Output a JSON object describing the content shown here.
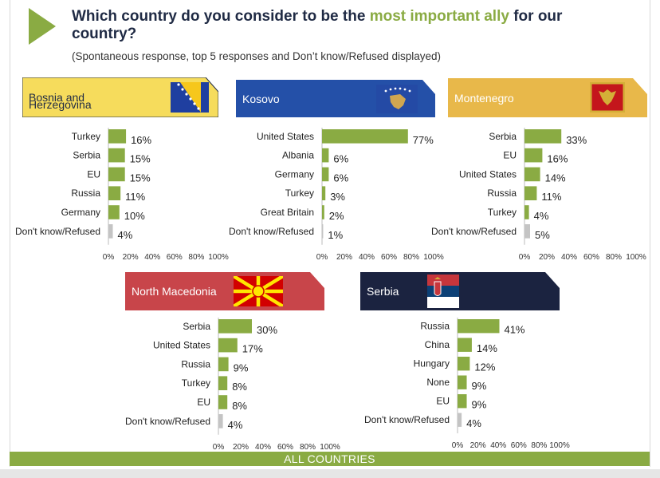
{
  "header": {
    "question_part1": "Which country do you consider to be the ",
    "question_highlight": "most important ally",
    "question_part2": " for our country?",
    "subtitle": "(Spontaneous response, top 5 responses and Don’t know/Refused displayed)"
  },
  "footer": {
    "label": "ALL COUNTRIES"
  },
  "colors": {
    "bar": "#8aab43",
    "bar_dk": "#c4c4c4",
    "accent": "#8aab43",
    "title": "#1f2a44"
  },
  "chart_data": [
    {
      "type": "bar",
      "orientation": "horizontal",
      "title": "Bosnia and Herzegovina",
      "title_lines": [
        "Bosnia and",
        "Herzegovina"
      ],
      "banner_color": "#f6dc5c",
      "banner_text_color": "#1f2a44",
      "flag": "bosnia-flag",
      "categories": [
        "Turkey",
        "Serbia",
        "EU",
        "Russia",
        "Germany",
        "Don't know/Refused"
      ],
      "values": [
        16,
        15,
        15,
        11,
        10,
        4
      ],
      "labels": [
        "16%",
        "15%",
        "15%",
        "11%",
        "10%",
        "4%"
      ],
      "xlim": [
        0,
        100
      ],
      "xticks": [
        "0%",
        "20%",
        "40%",
        "60%",
        "80%",
        "100%"
      ]
    },
    {
      "type": "bar",
      "orientation": "horizontal",
      "title": "Kosovo",
      "title_lines": [
        "Kosovo"
      ],
      "banner_color": "#2450a8",
      "banner_text_color": "#ffffff",
      "flag": "kosovo-flag",
      "categories": [
        "United States",
        "Albania",
        "Germany",
        "Turkey",
        "Great Britain",
        "Don't know/Refused"
      ],
      "values": [
        77,
        6,
        6,
        3,
        2,
        1
      ],
      "labels": [
        "77%",
        "6%",
        "6%",
        "3%",
        "2%",
        "1%"
      ],
      "xlim": [
        0,
        100
      ],
      "xticks": [
        "0%",
        "20%",
        "40%",
        "60%",
        "80%",
        "100%"
      ]
    },
    {
      "type": "bar",
      "orientation": "horizontal",
      "title": "Montenegro",
      "title_lines": [
        "Montenegro"
      ],
      "banner_color": "#e8b84a",
      "banner_text_color": "#ffffff",
      "flag": "montenegro-flag",
      "categories": [
        "Serbia",
        "EU",
        "United States",
        "Russia",
        "Turkey",
        "Don't know/Refused"
      ],
      "values": [
        33,
        16,
        14,
        11,
        4,
        5
      ],
      "labels": [
        "33%",
        "16%",
        "14%",
        "11%",
        "4%",
        "5%"
      ],
      "xlim": [
        0,
        100
      ],
      "xticks": [
        "0%",
        "20%",
        "40%",
        "60%",
        "80%",
        "100%"
      ]
    },
    {
      "type": "bar",
      "orientation": "horizontal",
      "title": "North Macedonia",
      "title_lines": [
        "North Macedonia"
      ],
      "banner_color": "#c8454a",
      "banner_text_color": "#ffffff",
      "flag": "north-macedonia-flag",
      "categories": [
        "Serbia",
        "United States",
        "Russia",
        "Turkey",
        "EU",
        "Don't know/Refused"
      ],
      "values": [
        30,
        17,
        9,
        8,
        8,
        4
      ],
      "labels": [
        "30%",
        "17%",
        "9%",
        "8%",
        "8%",
        "4%"
      ],
      "xlim": [
        0,
        100
      ],
      "xticks": [
        "0%",
        "20%",
        "40%",
        "60%",
        "80%",
        "100%"
      ]
    },
    {
      "type": "bar",
      "orientation": "horizontal",
      "title": "Serbia",
      "title_lines": [
        "Serbia"
      ],
      "banner_color": "#1b2340",
      "banner_text_color": "#ffffff",
      "flag": "serbia-flag",
      "categories": [
        "Russia",
        "China",
        "Hungary",
        "None",
        "EU",
        "Don't know/Refused"
      ],
      "values": [
        41,
        14,
        12,
        9,
        9,
        4
      ],
      "labels": [
        "41%",
        "14%",
        "12%",
        "9%",
        "9%",
        "4%"
      ],
      "xlim": [
        0,
        100
      ],
      "xticks": [
        "0%",
        "20%",
        "40%",
        "60%",
        "80%",
        "100%"
      ]
    }
  ]
}
